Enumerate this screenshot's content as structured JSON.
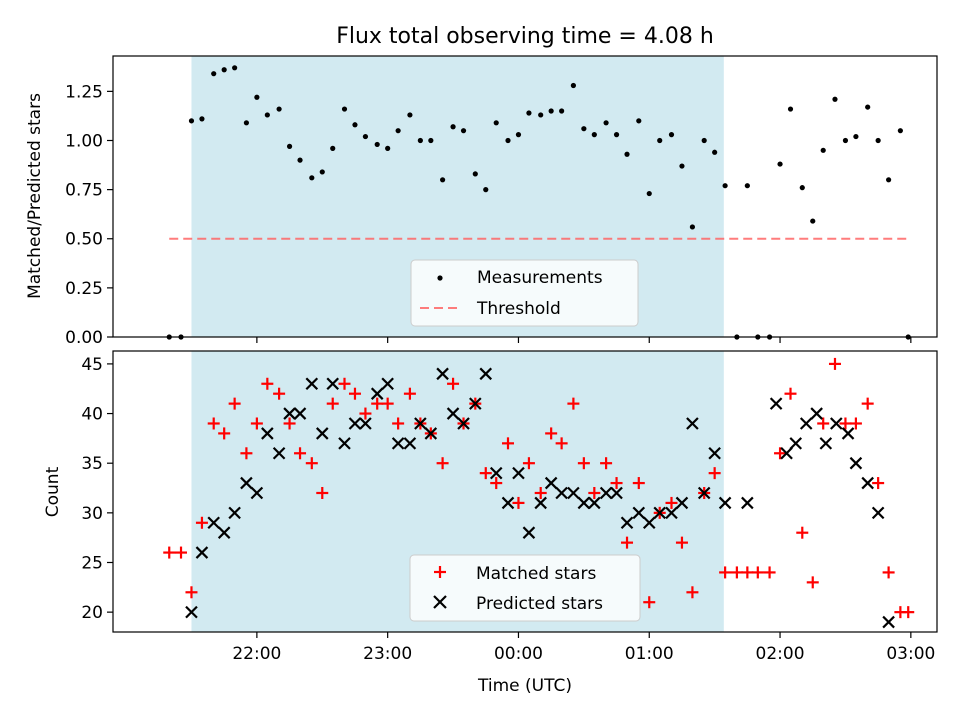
{
  "chart_data": [
    {
      "type": "scatter",
      "title": "Flux total observing time = 4.08 h",
      "xlabel": "",
      "ylabel": "Matched/Predicted stars",
      "ylim": [
        0,
        1.43
      ],
      "yticks": [
        0,
        0.25,
        0.5,
        0.75,
        1.0,
        1.25
      ],
      "ytick_labels": [
        "0.00",
        "0.25",
        "0.50",
        "0.75",
        "1.00",
        "1.25"
      ],
      "observing_window_hours": [
        21.5,
        25.57
      ],
      "observing_window_color": "#add8e6",
      "threshold": {
        "name": "Threshold",
        "value": 0.5,
        "x_range": [
          21.33,
          26.98
        ],
        "color": "#ff6666"
      },
      "legend": {
        "position": "lower-center",
        "entries": [
          "Measurements",
          "Threshold"
        ]
      },
      "series": [
        {
          "name": "Measurements",
          "marker": "dot",
          "color": "#000000",
          "x": [
            21.33,
            21.42,
            21.5,
            21.58,
            21.67,
            21.75,
            21.83,
            21.92,
            22.0,
            22.08,
            22.17,
            22.25,
            22.33,
            22.42,
            22.5,
            22.58,
            22.67,
            22.75,
            22.83,
            22.92,
            23.0,
            23.08,
            23.17,
            23.25,
            23.33,
            23.42,
            23.5,
            23.58,
            23.67,
            23.75,
            23.83,
            23.92,
            24.0,
            24.08,
            24.17,
            24.25,
            24.33,
            24.42,
            24.5,
            24.58,
            24.67,
            24.75,
            24.83,
            24.92,
            25.0,
            25.08,
            25.17,
            25.25,
            25.33,
            25.42,
            25.5,
            25.58,
            25.67,
            25.75,
            25.83,
            25.92,
            26.0,
            26.08,
            26.17,
            26.25,
            26.33,
            26.42,
            26.5,
            26.58,
            26.67,
            26.75,
            26.83,
            26.92,
            26.98
          ],
          "y": [
            0,
            0,
            1.1,
            1.11,
            1.34,
            1.36,
            1.37,
            1.09,
            1.22,
            1.13,
            1.16,
            0.97,
            0.9,
            0.81,
            0.84,
            0.96,
            1.16,
            1.08,
            1.02,
            0.98,
            0.96,
            1.05,
            1.13,
            1.0,
            1.0,
            0.8,
            1.07,
            1.05,
            0.83,
            0.75,
            1.09,
            1.0,
            1.03,
            1.14,
            1.13,
            1.15,
            1.15,
            1.28,
            1.06,
            1.03,
            1.09,
            1.03,
            0.93,
            1.1,
            0.73,
            1.0,
            1.03,
            0.87,
            0.56,
            1.0,
            0.94,
            0.77,
            0,
            0.77,
            0,
            0,
            0.88,
            1.16,
            0.76,
            0.59,
            0.95,
            1.21,
            1.0,
            1.02,
            1.17,
            1.0,
            0.8,
            1.05,
            0
          ]
        }
      ]
    },
    {
      "type": "scatter",
      "title": "",
      "xlabel": "Time (UTC)",
      "ylabel": "Count",
      "ylim": [
        18,
        46.3
      ],
      "xlim": [
        20.9,
        27.2
      ],
      "xticks": [
        22,
        23,
        24,
        25,
        26,
        27
      ],
      "xtick_labels": [
        "22:00",
        "23:00",
        "00:00",
        "01:00",
        "02:00",
        "03:00"
      ],
      "yticks": [
        20,
        25,
        30,
        35,
        40,
        45
      ],
      "ytick_labels": [
        "20",
        "25",
        "30",
        "35",
        "40",
        "45"
      ],
      "observing_window_hours": [
        21.5,
        25.57
      ],
      "observing_window_color": "#add8e6",
      "legend": {
        "position": "lower-center",
        "entries": [
          "Matched stars",
          "Predicted stars"
        ]
      },
      "series": [
        {
          "name": "Matched stars",
          "marker": "plus",
          "color": "#ff0000",
          "x": [
            21.33,
            21.42,
            21.5,
            21.58,
            21.67,
            21.75,
            21.83,
            21.92,
            22.0,
            22.08,
            22.17,
            22.25,
            22.33,
            22.42,
            22.5,
            22.58,
            22.67,
            22.75,
            22.83,
            22.92,
            23.0,
            23.08,
            23.17,
            23.25,
            23.33,
            23.42,
            23.5,
            23.58,
            23.67,
            23.75,
            23.83,
            23.92,
            24.0,
            24.08,
            24.17,
            24.25,
            24.33,
            24.42,
            24.5,
            24.58,
            24.67,
            24.75,
            24.83,
            24.92,
            25.0,
            25.08,
            25.17,
            25.25,
            25.33,
            25.42,
            25.5,
            25.58,
            25.67,
            25.75,
            25.83,
            25.92,
            26.0,
            26.08,
            26.17,
            26.25,
            26.33,
            26.42,
            26.5,
            26.58,
            26.67,
            26.75,
            26.83,
            26.92,
            26.98
          ],
          "y": [
            26,
            26,
            22,
            29,
            39,
            38,
            41,
            36,
            39,
            43,
            42,
            39,
            36,
            35,
            32,
            41,
            43,
            42,
            40,
            41,
            41,
            39,
            42,
            39,
            38,
            35,
            43,
            39,
            41,
            34,
            33,
            37,
            31,
            35,
            32,
            38,
            37,
            41,
            35,
            32,
            35,
            33,
            27,
            33,
            21,
            30,
            31,
            27,
            22,
            32,
            34,
            24,
            24,
            24,
            24,
            24,
            36,
            42,
            28,
            23,
            39,
            45,
            39,
            39,
            41,
            33,
            24,
            20,
            20
          ]
        },
        {
          "name": "Predicted stars",
          "marker": "x",
          "color": "#000000",
          "x": [
            21.5,
            21.58,
            21.67,
            21.75,
            21.83,
            21.92,
            22.0,
            22.08,
            22.17,
            22.25,
            22.33,
            22.42,
            22.5,
            22.58,
            22.67,
            22.75,
            22.83,
            22.92,
            23.0,
            23.08,
            23.17,
            23.25,
            23.33,
            23.42,
            23.5,
            23.58,
            23.67,
            23.75,
            23.83,
            23.92,
            24.0,
            24.08,
            24.17,
            24.25,
            24.33,
            24.42,
            24.5,
            24.58,
            24.67,
            24.75,
            24.83,
            24.92,
            25.0,
            25.08,
            25.17,
            25.25,
            25.33,
            25.42,
            25.5,
            25.58,
            25.75,
            25.97,
            26.05,
            26.12,
            26.2,
            26.28,
            26.35,
            26.43,
            26.52,
            26.58,
            26.67,
            26.75,
            26.83
          ],
          "y": [
            20,
            26,
            29,
            28,
            30,
            33,
            32,
            38,
            36,
            40,
            40,
            43,
            38,
            43,
            37,
            39,
            39,
            42,
            43,
            37,
            37,
            39,
            38,
            44,
            40,
            39,
            41,
            44,
            34,
            31,
            34,
            28,
            31,
            33,
            32,
            32,
            31,
            31,
            32,
            32,
            29,
            30,
            29,
            30,
            30,
            31,
            39,
            32,
            36,
            31,
            31,
            41,
            36,
            37,
            39,
            40,
            37,
            39,
            38,
            35,
            33,
            30,
            19
          ]
        }
      ]
    }
  ]
}
